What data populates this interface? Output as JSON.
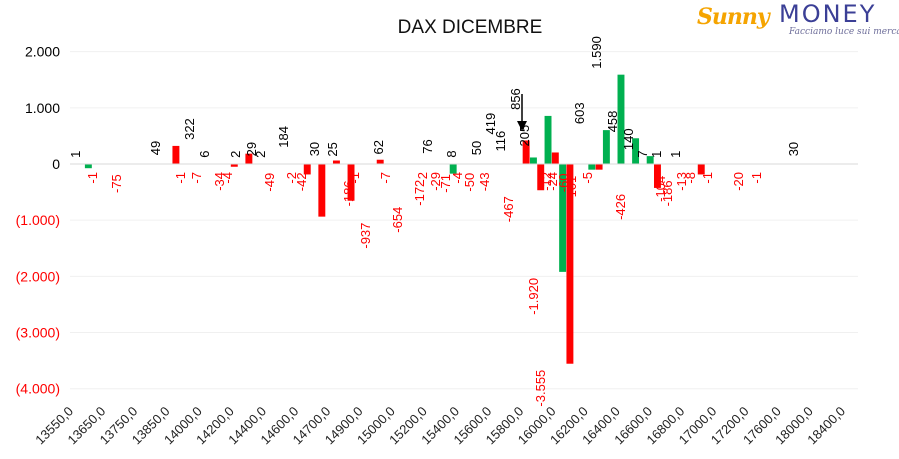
{
  "brand": {
    "sunny": "Sunny",
    "money": "MONEY",
    "tagline": "Facciamo luce sui mercati",
    "colors": {
      "sunny": "#f5a400",
      "money": "#3b3f96"
    }
  },
  "chart_data": {
    "type": "bar",
    "title": "DAX DICEMBRE",
    "xlabel": "",
    "ylabel": "",
    "ylim": [
      -4000,
      2000
    ],
    "grid": true,
    "legend": "none",
    "colors": {
      "positive": "#00b050",
      "negative": "#ff0000",
      "label_negative": "#ff0000",
      "label_positive": "#000000"
    },
    "y_ticks": [
      {
        "value": 2000,
        "label": "2.000"
      },
      {
        "value": 1000,
        "label": "1.000"
      },
      {
        "value": 0,
        "label": "0"
      },
      {
        "value": -1000,
        "label": "(1.000)"
      },
      {
        "value": -2000,
        "label": "(2.000)"
      },
      {
        "value": -3000,
        "label": "(3.000)"
      },
      {
        "value": -4000,
        "label": "(4.000)"
      }
    ],
    "x_tick_labels": [
      "13550,0",
      "13650,0",
      "13750,0",
      "13850,0",
      "14000,0",
      "14200,0",
      "14400,0",
      "14600,0",
      "14700,0",
      "14900,0",
      "15000,0",
      "15200,0",
      "15400,0",
      "15600,0",
      "15800,0",
      "16000,0",
      "16200,0",
      "16400,0",
      "16600,0",
      "16800,0",
      "17000,0",
      "17200,0",
      "17600,0",
      "18000,0",
      "18400,0"
    ],
    "series": [
      {
        "color": "#00b050",
        "values": [
          0,
          0,
          -75,
          0,
          0,
          0,
          0,
          0,
          0,
          0,
          0,
          0,
          0,
          0,
          0,
          0,
          0,
          0,
          0,
          0,
          0,
          0,
          0,
          0,
          0,
          0,
          0,
          0,
          0,
          0,
          0,
          0,
          0,
          0,
          0,
          0,
          0,
          0,
          0,
          0,
          0,
          0,
          0,
          0,
          0,
          0,
          0,
          0,
          0,
          0,
          0,
          0,
          -172,
          0,
          0,
          0,
          0,
          0,
          0,
          0,
          0,
          0,
          0,
          116,
          0,
          856,
          0,
          -1920,
          0,
          0,
          0,
          -101,
          0,
          603,
          0,
          1590,
          0,
          458,
          0,
          140,
          0,
          0,
          0,
          0,
          0,
          0,
          0,
          0,
          0,
          0,
          0,
          0,
          0,
          0,
          0,
          0,
          0,
          0,
          0,
          0,
          0,
          0,
          0,
          0,
          0,
          0,
          0,
          0
        ]
      },
      {
        "color": "#ff0000",
        "values": [
          0,
          0,
          0,
          0,
          0,
          0,
          0,
          0,
          0,
          0,
          0,
          0,
          0,
          0,
          322,
          0,
          0,
          0,
          0,
          0,
          0,
          0,
          -49,
          0,
          184,
          0,
          0,
          0,
          0,
          0,
          0,
          0,
          -186,
          0,
          -937,
          0,
          62,
          0,
          -654,
          0,
          0,
          0,
          76,
          0,
          0,
          0,
          0,
          0,
          0,
          0,
          0,
          0,
          0,
          0,
          0,
          0,
          0,
          0,
          0,
          0,
          0,
          0,
          419,
          0,
          -467,
          0,
          205,
          0,
          -3555,
          0,
          0,
          0,
          -101,
          0,
          0,
          0,
          0,
          0,
          0,
          0,
          -426,
          0,
          0,
          0,
          0,
          0,
          -186,
          0,
          0,
          0,
          0,
          0,
          0,
          0,
          0,
          0,
          0,
          0,
          0,
          0,
          0,
          0,
          0,
          0,
          0,
          0,
          0,
          0
        ]
      }
    ],
    "data_labels": [
      {
        "text": "1",
        "v": 1
      },
      {
        "text": "-1",
        "v": -1
      },
      {
        "text": "-75",
        "v": -75
      },
      {
        "text": "49",
        "v": 49
      },
      {
        "text": "-1",
        "v": -1
      },
      {
        "text": "322",
        "v": 322
      },
      {
        "text": "-7",
        "v": -7
      },
      {
        "text": "6",
        "v": 6
      },
      {
        "text": "-34",
        "v": -34
      },
      {
        "text": "-4",
        "v": -4
      },
      {
        "text": "2",
        "v": 2
      },
      {
        "text": "29",
        "v": 29
      },
      {
        "text": "2",
        "v": 2
      },
      {
        "text": "-49",
        "v": -49
      },
      {
        "text": "184",
        "v": 184
      },
      {
        "text": "-2",
        "v": -2
      },
      {
        "text": "-42",
        "v": -42
      },
      {
        "text": "30",
        "v": 30
      },
      {
        "text": "25",
        "v": 25
      },
      {
        "text": "-186",
        "v": -186
      },
      {
        "text": "-1",
        "v": -1
      },
      {
        "text": "-937",
        "v": -937
      },
      {
        "text": "62",
        "v": 62
      },
      {
        "text": "-7",
        "v": -7
      },
      {
        "text": "-654",
        "v": -654
      },
      {
        "text": "-172",
        "v": -172
      },
      {
        "text": "-2",
        "v": -2
      },
      {
        "text": "76",
        "v": 76
      },
      {
        "text": "-29",
        "v": -29
      },
      {
        "text": "-71",
        "v": -71
      },
      {
        "text": "8",
        "v": 8
      },
      {
        "text": "-4",
        "v": -4
      },
      {
        "text": "-50",
        "v": -50
      },
      {
        "text": "50",
        "v": 50
      },
      {
        "text": "-43",
        "v": -43
      },
      {
        "text": "419",
        "v": 419
      },
      {
        "text": "116",
        "v": 116
      },
      {
        "text": "-467",
        "v": -467
      },
      {
        "text": "856",
        "v": 856
      },
      {
        "text": "205",
        "v": 205
      },
      {
        "text": "-1.920",
        "v": -1920
      },
      {
        "text": "-3.555",
        "v": -3555
      },
      {
        "text": "-12",
        "v": -12
      },
      {
        "text": "-24",
        "v": -24
      },
      {
        "text": "-60",
        "v": -60
      },
      {
        "text": "-101",
        "v": -101
      },
      {
        "text": "603",
        "v": 603
      },
      {
        "text": "-5",
        "v": -5
      },
      {
        "text": "1.590",
        "v": 1590
      },
      {
        "text": "458",
        "v": 458
      },
      {
        "text": "-426",
        "v": -426
      },
      {
        "text": "140",
        "v": 140
      },
      {
        "text": "7",
        "v": 7
      },
      {
        "text": "1",
        "v": 1
      },
      {
        "text": "-104",
        "v": -104
      },
      {
        "text": "-186",
        "v": -186
      },
      {
        "text": "1",
        "v": 1
      },
      {
        "text": "-13",
        "v": -13
      },
      {
        "text": "-8",
        "v": -8
      },
      {
        "text": "-1",
        "v": -1
      },
      {
        "text": "-20",
        "v": -20
      },
      {
        "text": "-1",
        "v": -1
      },
      {
        "text": "30",
        "v": 30
      }
    ]
  }
}
